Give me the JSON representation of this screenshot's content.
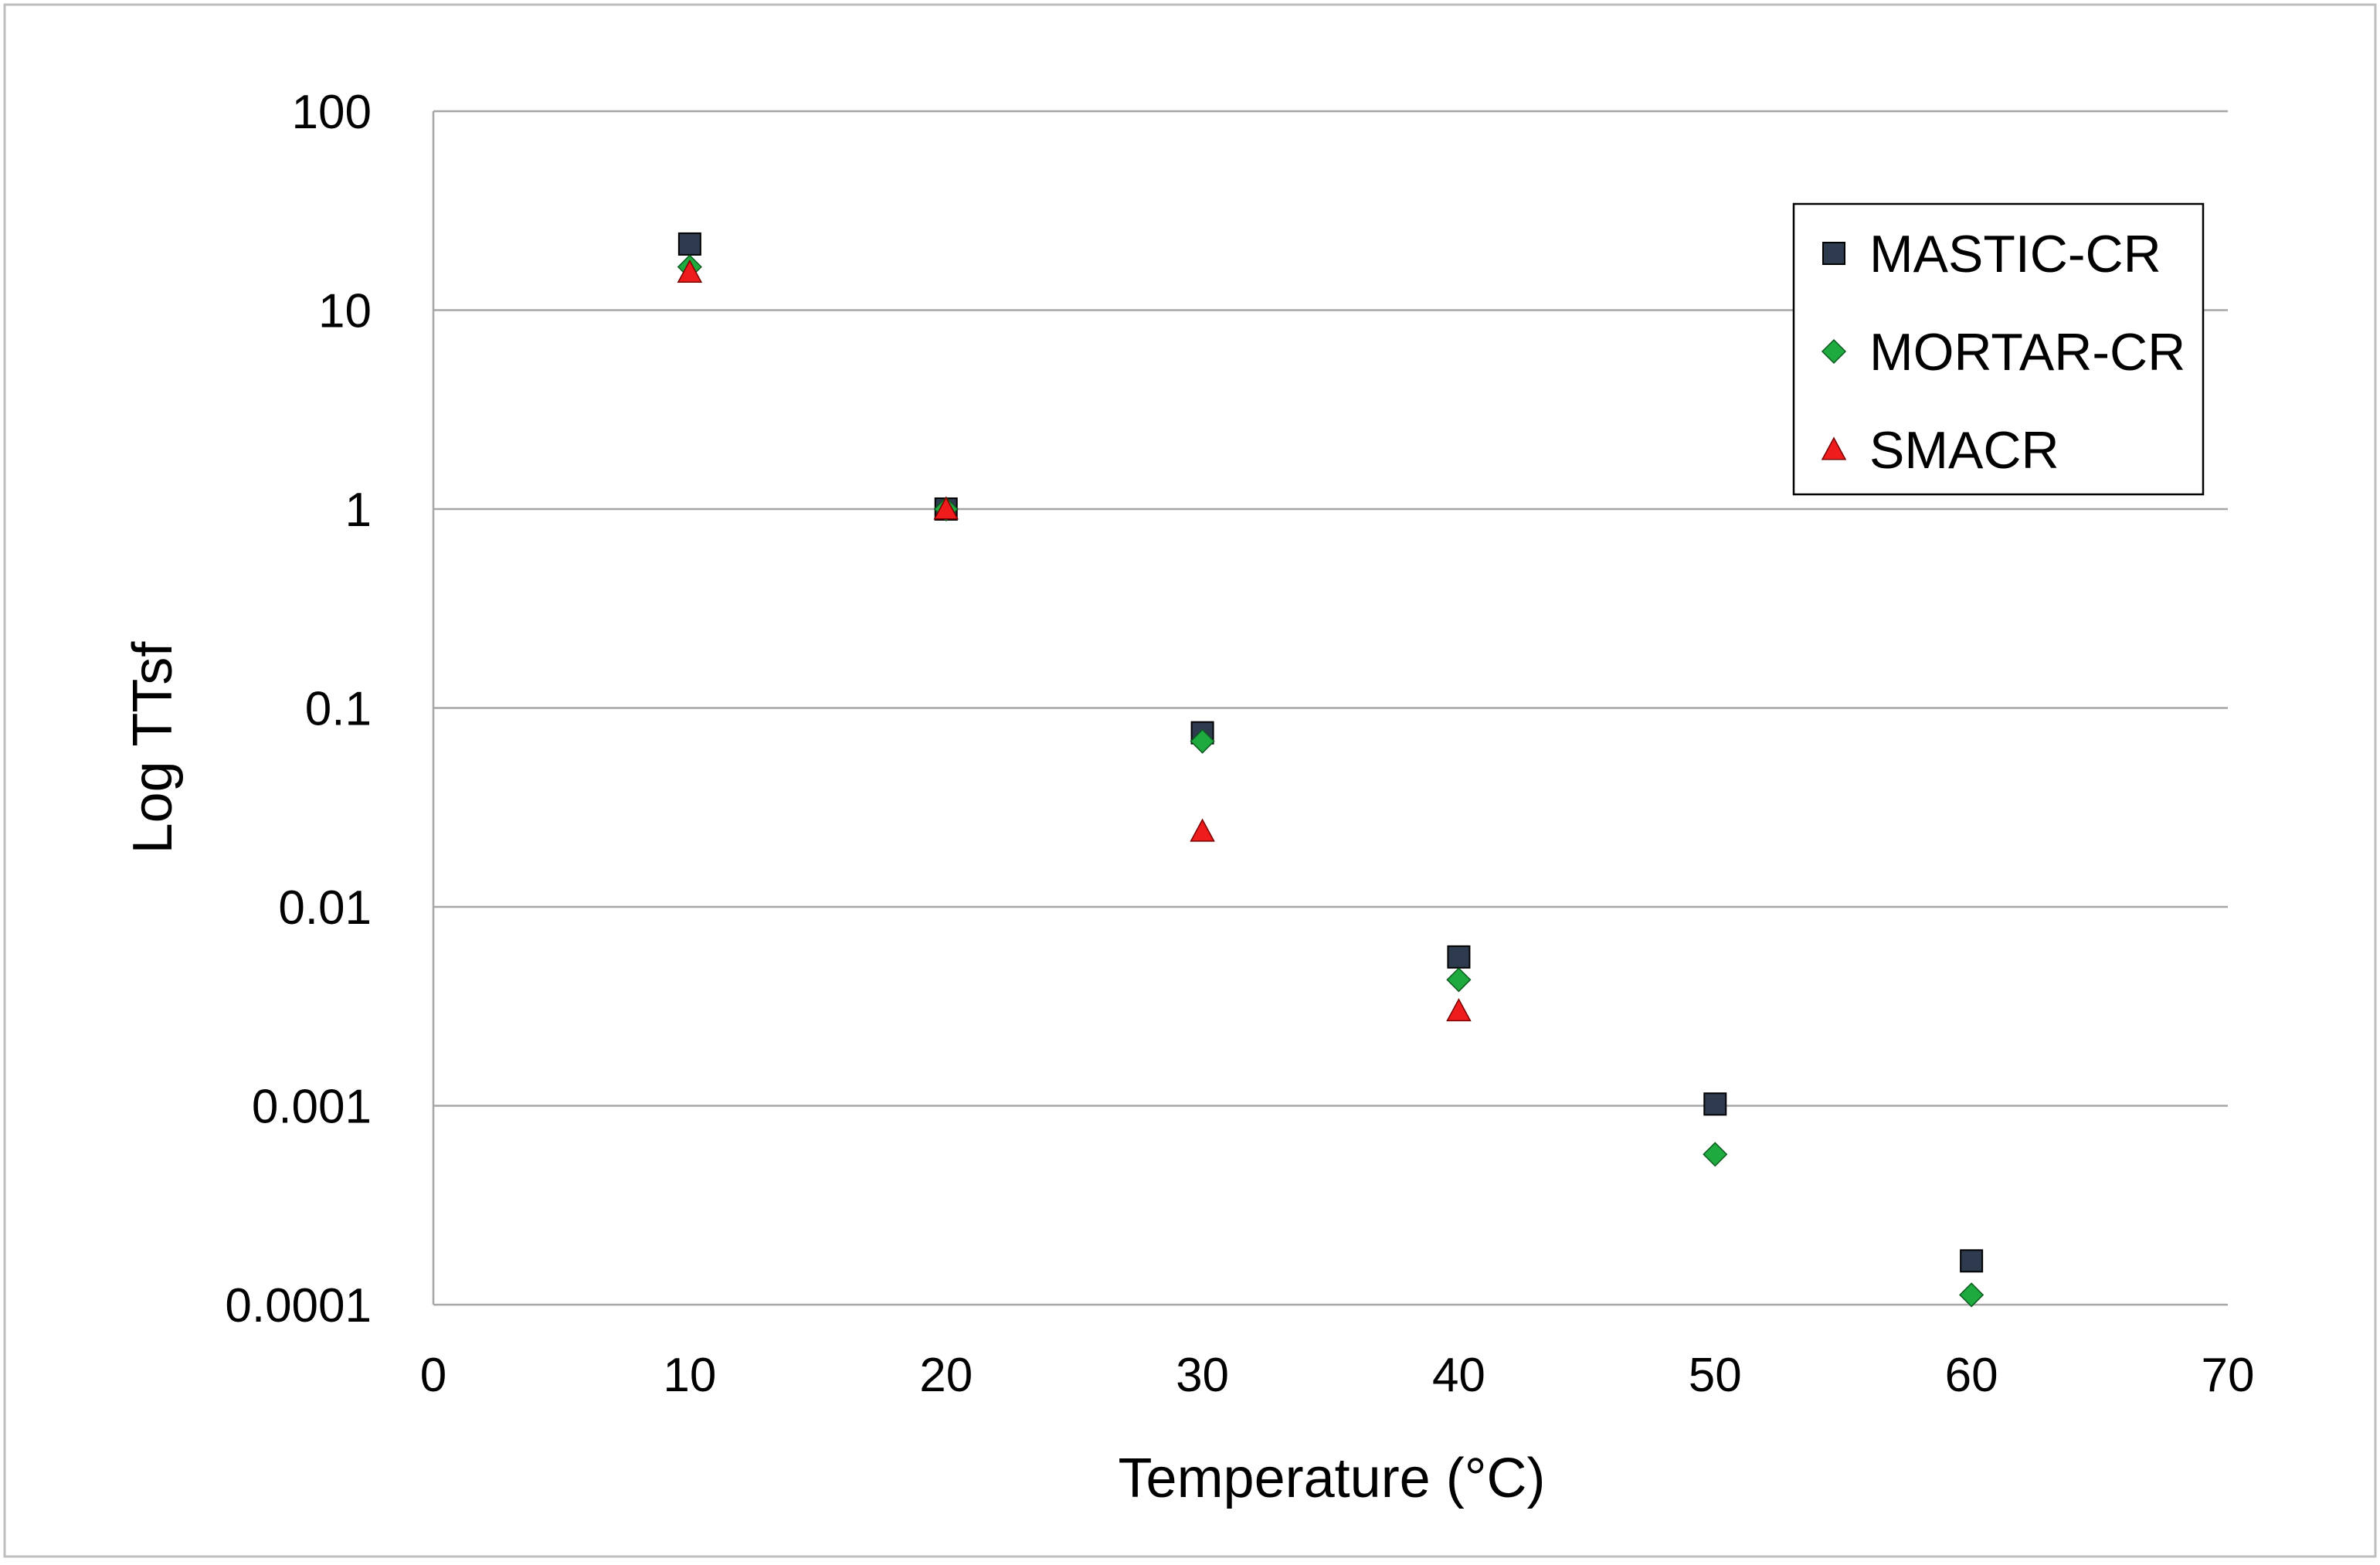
{
  "chart_data": {
    "type": "scatter",
    "title": "",
    "xlabel": "Temperature (°C)",
    "ylabel": "Log TTsf",
    "xlim": [
      0,
      70
    ],
    "ylim": [
      0.0001,
      100
    ],
    "yscale": "log",
    "grid": "horizontal",
    "legend_position": "top-right",
    "x_ticks": [
      "0",
      "10",
      "20",
      "30",
      "40",
      "50",
      "60",
      "70"
    ],
    "y_ticks": [
      "0.0001",
      "0.001",
      "0.01",
      "0.1",
      "1",
      "10",
      "100"
    ],
    "series": [
      {
        "name": "MASTIC-CR",
        "marker": "square",
        "color": "#2e3b4e",
        "x": [
          10,
          20,
          30,
          40,
          50,
          60
        ],
        "y": [
          21.5,
          1,
          0.075,
          0.0056,
          0.00102,
          0.000166
        ]
      },
      {
        "name": "MORTAR-CR",
        "marker": "diamond",
        "color": "#1faa3f",
        "x": [
          10,
          20,
          30,
          40,
          50,
          60
        ],
        "y": [
          16.5,
          1,
          0.068,
          0.0043,
          0.00057,
          0.000112
        ]
      },
      {
        "name": "SMACR",
        "marker": "triangle",
        "color": "#ee1c1c",
        "x": [
          10,
          20,
          30,
          40
        ],
        "y": [
          15.5,
          1,
          0.024,
          0.003
        ]
      }
    ]
  }
}
